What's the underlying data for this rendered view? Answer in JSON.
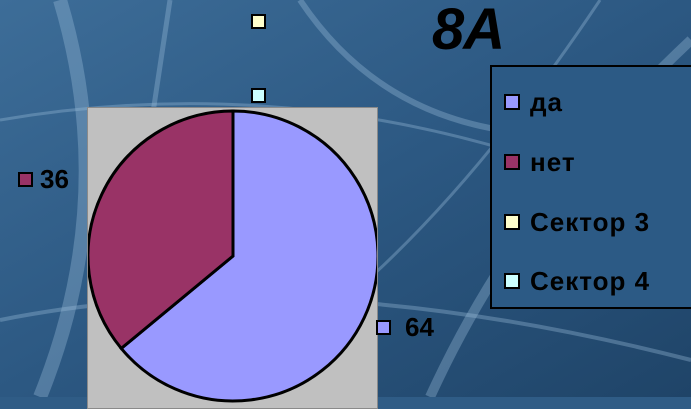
{
  "chart_data": {
    "type": "pie",
    "title": "8А",
    "categories": [
      "да",
      "нет",
      "Сектор 3",
      "Сектор 4"
    ],
    "values": [
      64,
      36,
      0,
      0
    ],
    "data_labels": [
      "64",
      "36",
      "",
      ""
    ],
    "colors": [
      "#9999ff",
      "#993366",
      "#ffffcc",
      "#ccffff"
    ],
    "legend_position": "right",
    "plot_background": "#c0c0c0"
  }
}
